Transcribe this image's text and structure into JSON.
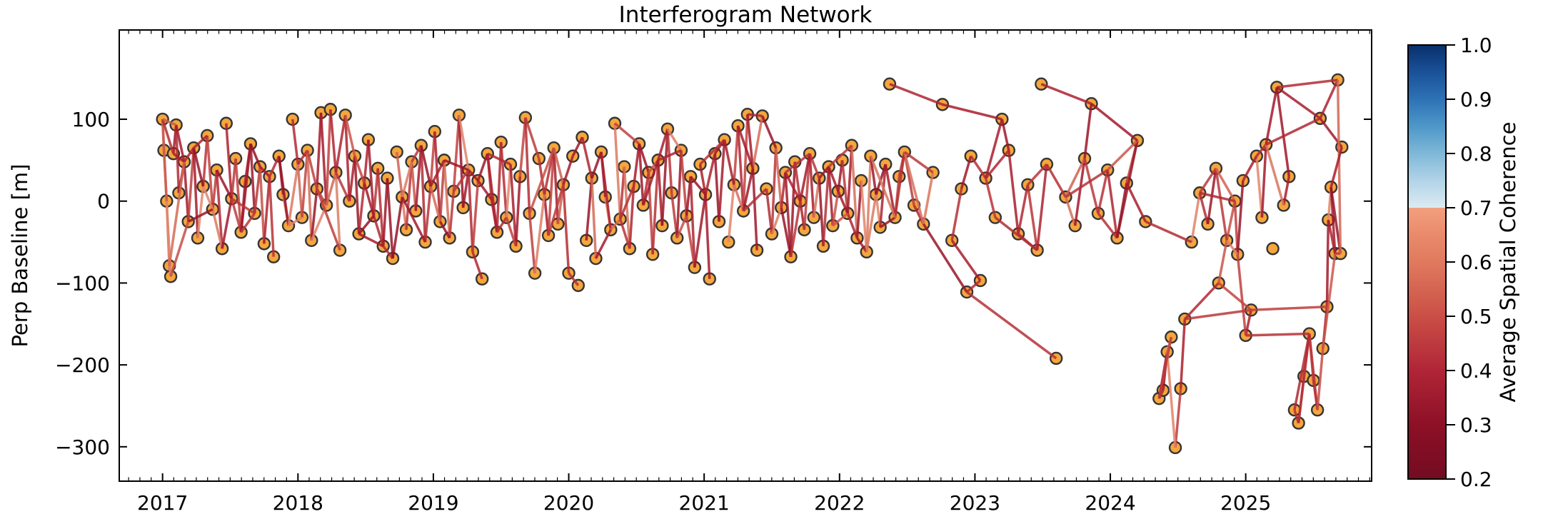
{
  "chart_data": {
    "type": "scatter",
    "subtype": "interferogram-network",
    "title": "Interferogram Network",
    "xlabel": "",
    "ylabel": "Perp Baseline [m]",
    "xlim": [
      2016.68,
      2025.93
    ],
    "ylim": [
      -342,
      209
    ],
    "grid": false,
    "background": "#FFFFFF",
    "frame_color": "#000000",
    "text_color": "#000000",
    "x_ticks": [
      {
        "v": 2017,
        "label": "2017"
      },
      {
        "v": 2018,
        "label": "2018"
      },
      {
        "v": 2019,
        "label": "2019"
      },
      {
        "v": 2020,
        "label": "2020"
      },
      {
        "v": 2021,
        "label": "2021"
      },
      {
        "v": 2022,
        "label": "2022"
      },
      {
        "v": 2023,
        "label": "2023"
      },
      {
        "v": 2024,
        "label": "2024"
      },
      {
        "v": 2025,
        "label": "2025"
      }
    ],
    "x_minor_step_years": 0.0833333,
    "y_ticks": [
      {
        "v": 100,
        "label": "100"
      },
      {
        "v": 0,
        "label": "0"
      },
      {
        "v": -100,
        "label": "−100"
      },
      {
        "v": -200,
        "label": "−200"
      },
      {
        "v": -300,
        "label": "−300"
      }
    ],
    "node_style": {
      "radius": 8,
      "fill": "#F5A63C",
      "stroke": "#353535",
      "stroke_width": 2.4
    },
    "edge_style": {
      "width": 3.5,
      "opacity": 0.85
    },
    "edge_color_stops": [
      [
        0.2,
        "#6B0A20"
      ],
      [
        0.3,
        "#870E24"
      ],
      [
        0.4,
        "#A81C2C"
      ],
      [
        0.5,
        "#C24440"
      ],
      [
        0.6,
        "#D8745C"
      ],
      [
        0.7,
        "#EC9C7D"
      ]
    ],
    "colorbar": {
      "label": "Average Spatial Coherence",
      "vmin": 0.2,
      "vmax": 1.0,
      "break_value": 0.7,
      "ticks": [
        {
          "v": 1.0,
          "label": "1.0"
        },
        {
          "v": 0.9,
          "label": "0.9"
        },
        {
          "v": 0.8,
          "label": "0.8"
        },
        {
          "v": 0.7,
          "label": "0.7"
        },
        {
          "v": 0.6,
          "label": "0.6"
        },
        {
          "v": 0.5,
          "label": "0.5"
        },
        {
          "v": 0.4,
          "label": "0.4"
        },
        {
          "v": 0.3,
          "label": "0.3"
        },
        {
          "v": 0.2,
          "label": "0.2"
        }
      ],
      "gradient": [
        [
          1.0,
          "#08306B"
        ],
        [
          0.95,
          "#1A5199"
        ],
        [
          0.9,
          "#2E72B5"
        ],
        [
          0.85,
          "#4E97C9"
        ],
        [
          0.8,
          "#7FB8D8"
        ],
        [
          0.75,
          "#B2D3E7"
        ],
        [
          0.7,
          "#DCEBF2"
        ],
        [
          0.7,
          "#F2A07F"
        ],
        [
          0.65,
          "#EA8A6B"
        ],
        [
          0.6,
          "#E07A5E"
        ],
        [
          0.5,
          "#CA4F46"
        ],
        [
          0.4,
          "#B02537"
        ],
        [
          0.3,
          "#8D1026"
        ],
        [
          0.2,
          "#730C22"
        ]
      ]
    },
    "points": [
      [
        2017.0,
        100
      ],
      [
        2017.01,
        62
      ],
      [
        2017.03,
        0
      ],
      [
        2017.05,
        -79
      ],
      [
        2017.06,
        -92
      ],
      [
        2017.08,
        58
      ],
      [
        2017.1,
        93
      ],
      [
        2017.12,
        10
      ],
      [
        2017.16,
        48
      ],
      [
        2017.19,
        -25
      ],
      [
        2017.23,
        65
      ],
      [
        2017.26,
        -45
      ],
      [
        2017.3,
        18
      ],
      [
        2017.33,
        80
      ],
      [
        2017.37,
        -10
      ],
      [
        2017.4,
        38
      ],
      [
        2017.44,
        -58
      ],
      [
        2017.47,
        95
      ],
      [
        2017.51,
        3
      ],
      [
        2017.54,
        52
      ],
      [
        2017.58,
        -38
      ],
      [
        2017.61,
        24
      ],
      [
        2017.65,
        70
      ],
      [
        2017.68,
        -15
      ],
      [
        2017.72,
        42
      ],
      [
        2017.75,
        -52
      ],
      [
        2017.79,
        30
      ],
      [
        2017.82,
        -68
      ],
      [
        2017.86,
        55
      ],
      [
        2017.89,
        8
      ],
      [
        2017.93,
        -30
      ],
      [
        2017.96,
        100
      ],
      [
        2018.0,
        45
      ],
      [
        2018.03,
        -20
      ],
      [
        2018.07,
        62
      ],
      [
        2018.1,
        -48
      ],
      [
        2018.14,
        15
      ],
      [
        2018.17,
        108
      ],
      [
        2018.21,
        -5
      ],
      [
        2018.24,
        112
      ],
      [
        2018.28,
        35
      ],
      [
        2018.31,
        -60
      ],
      [
        2018.35,
        105
      ],
      [
        2018.38,
        0
      ],
      [
        2018.42,
        55
      ],
      [
        2018.45,
        -40
      ],
      [
        2018.49,
        22
      ],
      [
        2018.52,
        75
      ],
      [
        2018.56,
        -18
      ],
      [
        2018.59,
        40
      ],
      [
        2018.63,
        -55
      ],
      [
        2018.66,
        28
      ],
      [
        2018.7,
        -70
      ],
      [
        2018.73,
        60
      ],
      [
        2018.77,
        5
      ],
      [
        2018.8,
        -35
      ],
      [
        2018.84,
        48
      ],
      [
        2018.87,
        -12
      ],
      [
        2018.91,
        68
      ],
      [
        2018.94,
        -50
      ],
      [
        2018.98,
        18
      ],
      [
        2019.01,
        85
      ],
      [
        2019.05,
        -25
      ],
      [
        2019.08,
        50
      ],
      [
        2019.12,
        -45
      ],
      [
        2019.15,
        12
      ],
      [
        2019.19,
        105
      ],
      [
        2019.22,
        -8
      ],
      [
        2019.26,
        38
      ],
      [
        2019.29,
        -62
      ],
      [
        2019.33,
        25
      ],
      [
        2019.36,
        -95
      ],
      [
        2019.4,
        58
      ],
      [
        2019.43,
        2
      ],
      [
        2019.47,
        -38
      ],
      [
        2019.5,
        72
      ],
      [
        2019.54,
        -20
      ],
      [
        2019.57,
        45
      ],
      [
        2019.61,
        -55
      ],
      [
        2019.64,
        30
      ],
      [
        2019.68,
        102
      ],
      [
        2019.71,
        -15
      ],
      [
        2019.75,
        -88
      ],
      [
        2019.78,
        52
      ],
      [
        2019.82,
        8
      ],
      [
        2019.85,
        -42
      ],
      [
        2019.89,
        65
      ],
      [
        2019.92,
        -28
      ],
      [
        2019.96,
        20
      ],
      [
        2020.0,
        -88
      ],
      [
        2020.03,
        55
      ],
      [
        2020.07,
        -103
      ],
      [
        2020.1,
        78
      ],
      [
        2020.13,
        -48
      ],
      [
        2020.17,
        28
      ],
      [
        2020.2,
        -70
      ],
      [
        2020.24,
        60
      ],
      [
        2020.27,
        5
      ],
      [
        2020.31,
        -35
      ],
      [
        2020.34,
        95
      ],
      [
        2020.38,
        -22
      ],
      [
        2020.41,
        42
      ],
      [
        2020.45,
        -58
      ],
      [
        2020.48,
        18
      ],
      [
        2020.52,
        70
      ],
      [
        2020.55,
        -5
      ],
      [
        2020.59,
        35
      ],
      [
        2020.62,
        -65
      ],
      [
        2020.66,
        50
      ],
      [
        2020.69,
        -30
      ],
      [
        2020.73,
        88
      ],
      [
        2020.76,
        10
      ],
      [
        2020.8,
        -45
      ],
      [
        2020.83,
        62
      ],
      [
        2020.87,
        -18
      ],
      [
        2020.9,
        30
      ],
      [
        2020.93,
        -81
      ],
      [
        2020.97,
        45
      ],
      [
        2021.01,
        8
      ],
      [
        2021.04,
        -95
      ],
      [
        2021.08,
        58
      ],
      [
        2021.11,
        -25
      ],
      [
        2021.15,
        75
      ],
      [
        2021.18,
        -50
      ],
      [
        2021.22,
        20
      ],
      [
        2021.25,
        92
      ],
      [
        2021.29,
        -12
      ],
      [
        2021.32,
        106
      ],
      [
        2021.36,
        40
      ],
      [
        2021.39,
        -60
      ],
      [
        2021.43,
        104
      ],
      [
        2021.46,
        15
      ],
      [
        2021.5,
        -40
      ],
      [
        2021.53,
        65
      ],
      [
        2021.57,
        -8
      ],
      [
        2021.6,
        35
      ],
      [
        2021.64,
        -68
      ],
      [
        2021.67,
        48
      ],
      [
        2021.71,
        0
      ],
      [
        2021.74,
        -35
      ],
      [
        2021.78,
        58
      ],
      [
        2021.81,
        -20
      ],
      [
        2021.85,
        28
      ],
      [
        2021.88,
        -55
      ],
      [
        2021.92,
        42
      ],
      [
        2021.95,
        -30
      ],
      [
        2021.99,
        12
      ],
      [
        2022.02,
        50
      ],
      [
        2022.06,
        -15
      ],
      [
        2022.09,
        68
      ],
      [
        2022.13,
        -45
      ],
      [
        2022.16,
        25
      ],
      [
        2022.2,
        -62
      ],
      [
        2022.23,
        55
      ],
      [
        2022.27,
        8
      ],
      [
        2022.3,
        -32
      ],
      [
        2022.34,
        45
      ],
      [
        2022.37,
        143
      ],
      [
        2022.41,
        -20
      ],
      [
        2022.44,
        30
      ],
      [
        2022.48,
        60
      ],
      [
        2022.55,
        -5
      ],
      [
        2022.62,
        -28
      ],
      [
        2022.69,
        35
      ],
      [
        2022.76,
        118
      ],
      [
        2022.83,
        -48
      ],
      [
        2022.9,
        15
      ],
      [
        2022.94,
        -111
      ],
      [
        2022.97,
        55
      ],
      [
        2023.04,
        -97
      ],
      [
        2023.08,
        28
      ],
      [
        2023.15,
        -20
      ],
      [
        2023.2,
        100
      ],
      [
        2023.25,
        62
      ],
      [
        2023.32,
        -40
      ],
      [
        2023.39,
        20
      ],
      [
        2023.46,
        -60
      ],
      [
        2023.49,
        143
      ],
      [
        2023.53,
        45
      ],
      [
        2023.6,
        -192
      ],
      [
        2023.67,
        5
      ],
      [
        2023.74,
        -30
      ],
      [
        2023.81,
        52
      ],
      [
        2023.86,
        119
      ],
      [
        2023.91,
        -15
      ],
      [
        2023.98,
        38
      ],
      [
        2024.05,
        -45
      ],
      [
        2024.12,
        22
      ],
      [
        2024.2,
        74
      ],
      [
        2024.26,
        -25
      ],
      [
        2024.36,
        -241
      ],
      [
        2024.39,
        -231
      ],
      [
        2024.42,
        -184
      ],
      [
        2024.45,
        -166
      ],
      [
        2024.48,
        -301
      ],
      [
        2024.52,
        -229
      ],
      [
        2024.55,
        -144
      ],
      [
        2024.6,
        -50
      ],
      [
        2024.66,
        10
      ],
      [
        2024.72,
        -28
      ],
      [
        2024.78,
        40
      ],
      [
        2024.8,
        -100
      ],
      [
        2024.86,
        -48
      ],
      [
        2024.92,
        0
      ],
      [
        2024.94,
        -65
      ],
      [
        2024.98,
        25
      ],
      [
        2025.0,
        -164
      ],
      [
        2025.04,
        -133
      ],
      [
        2025.08,
        55
      ],
      [
        2025.12,
        -20
      ],
      [
        2025.15,
        69
      ],
      [
        2025.2,
        -58
      ],
      [
        2025.23,
        139
      ],
      [
        2025.28,
        -5
      ],
      [
        2025.32,
        30
      ],
      [
        2025.36,
        -255
      ],
      [
        2025.39,
        -271
      ],
      [
        2025.43,
        -214
      ],
      [
        2025.47,
        -162
      ],
      [
        2025.5,
        -219
      ],
      [
        2025.53,
        -255
      ],
      [
        2025.55,
        101
      ],
      [
        2025.57,
        -180
      ],
      [
        2025.6,
        -129
      ],
      [
        2025.61,
        -23
      ],
      [
        2025.63,
        17
      ],
      [
        2025.66,
        -64
      ],
      [
        2025.68,
        148
      ],
      [
        2025.7,
        -64
      ],
      [
        2025.71,
        66
      ]
    ],
    "edge_rules": [
      {
        "step": 1,
        "every": 1,
        "max_dx": 0.35,
        "max_dy": 120
      },
      {
        "step": 2,
        "every": 2,
        "max_dx": 0.3,
        "max_dy": 120
      },
      {
        "step": 3,
        "every": 5,
        "max_dx": 0.35,
        "max_dy": 100
      },
      {
        "step": 5,
        "every": 9,
        "max_dx": 0.6,
        "max_dy": 90
      }
    ],
    "extra_edges": [
      [
        2022.37,
        143,
        2022.76,
        118,
        0.42
      ],
      [
        2022.76,
        118,
        2023.2,
        100,
        0.4
      ],
      [
        2023.49,
        143,
        2023.86,
        119,
        0.41
      ],
      [
        2023.86,
        119,
        2024.2,
        74,
        0.38
      ],
      [
        2022.94,
        -111,
        2023.6,
        -192,
        0.45
      ],
      [
        2022.94,
        -111,
        2023.04,
        -97,
        0.44
      ],
      [
        2022.83,
        -48,
        2023.04,
        -97,
        0.4
      ],
      [
        2024.55,
        -144,
        2025.04,
        -133,
        0.47
      ],
      [
        2024.55,
        -144,
        2024.8,
        -100,
        0.43
      ],
      [
        2024.8,
        -100,
        2025.04,
        -133,
        0.5
      ],
      [
        2025.23,
        139,
        2025.68,
        148,
        0.44
      ],
      [
        2025.23,
        139,
        2025.55,
        101,
        0.4
      ],
      [
        2025.55,
        101,
        2025.68,
        148,
        0.42
      ],
      [
        2025.55,
        101,
        2025.71,
        66,
        0.38
      ],
      [
        2025.15,
        69,
        2025.55,
        101,
        0.43
      ],
      [
        2025.68,
        148,
        2025.7,
        -64,
        0.57
      ],
      [
        2025.66,
        -64,
        2025.57,
        -180,
        0.54
      ],
      [
        2025.63,
        17,
        2025.71,
        66,
        0.4
      ],
      [
        2025.04,
        -133,
        2025.6,
        -129,
        0.48
      ],
      [
        2025.0,
        -164,
        2025.47,
        -162,
        0.45
      ],
      [
        2021.32,
        106,
        2021.43,
        104,
        0.42
      ],
      [
        2020.0,
        -88,
        2020.07,
        -103,
        0.45
      ],
      [
        2019.29,
        -62,
        2019.36,
        -95,
        0.43
      ],
      [
        2024.12,
        22,
        2024.26,
        -25,
        0.4
      ],
      [
        2024.26,
        -25,
        2024.6,
        -50,
        0.44
      ],
      [
        2017.0,
        100,
        2017.1,
        93,
        0.55
      ],
      [
        2017.05,
        -79,
        2017.16,
        48,
        0.58
      ],
      [
        2017.06,
        -92,
        2017.19,
        -25,
        0.52
      ]
    ],
    "suppressed_edges": [
      [
        2022.34,
        45,
        2022.37,
        143
      ],
      [
        2022.69,
        35,
        2022.76,
        118
      ],
      [
        2022.76,
        118,
        2022.9,
        15
      ],
      [
        2022.37,
        143,
        2022.44,
        30
      ],
      [
        2023.49,
        143,
        2023.53,
        45
      ],
      [
        2023.86,
        119,
        2023.98,
        38
      ],
      [
        2024.2,
        74,
        2024.26,
        -25
      ],
      [
        2024.55,
        -144,
        2024.6,
        -50
      ],
      [
        2021.43,
        104,
        2021.46,
        15
      ]
    ],
    "coherence_random": {
      "seed": 13,
      "base_min": 0.34,
      "base_span": 0.16,
      "light_prob": 0.15,
      "light_min": 0.52,
      "light_span": 0.13
    }
  }
}
